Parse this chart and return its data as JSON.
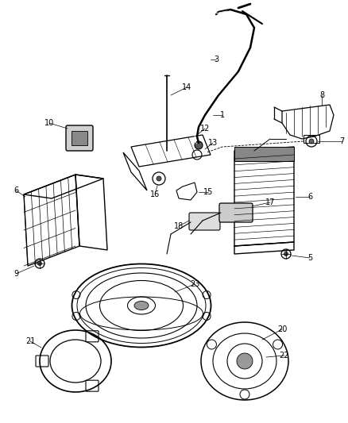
{
  "bg_color": "#ffffff",
  "line_color": "#000000",
  "fig_width": 4.38,
  "fig_height": 5.33,
  "dpi": 100
}
